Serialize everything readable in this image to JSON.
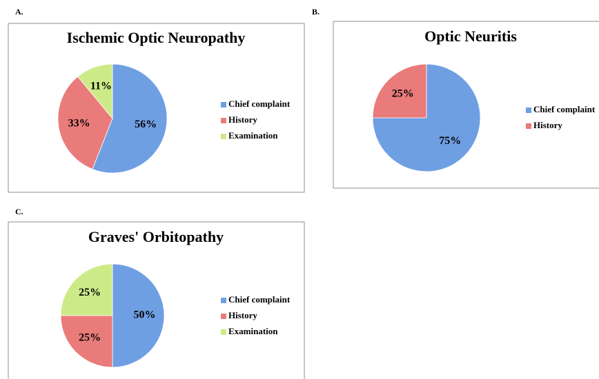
{
  "chart_data": [
    {
      "type": "pie",
      "panel": "A.",
      "title": "Ischemic Optic Neuropathy",
      "categories": [
        "Chief complaint",
        "History",
        "Examination"
      ],
      "values": [
        56,
        33,
        11
      ],
      "value_labels": [
        "56%",
        "33%",
        "11%"
      ],
      "colors": [
        "#6f9fe3",
        "#ea7b7b",
        "#cdea88"
      ]
    },
    {
      "type": "pie",
      "panel": "B.",
      "title": "Optic Neuritis",
      "categories": [
        "Chief complaint",
        "History"
      ],
      "values": [
        75,
        25
      ],
      "value_labels": [
        "75%",
        "25%"
      ],
      "colors": [
        "#6f9fe3",
        "#ea7b7b"
      ]
    },
    {
      "type": "pie",
      "panel": "C.",
      "title": "Graves' Orbitopathy",
      "categories": [
        "Chief complaint",
        "History",
        "Examination"
      ],
      "values": [
        50,
        25,
        25
      ],
      "value_labels": [
        "50%",
        "25%",
        "25%"
      ],
      "colors": [
        "#6f9fe3",
        "#ea7b7b",
        "#cdea88"
      ]
    }
  ]
}
